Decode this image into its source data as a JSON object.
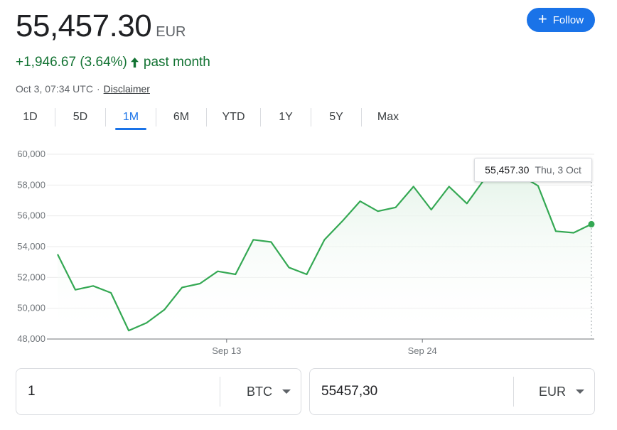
{
  "header": {
    "price": "55,457.30",
    "currency": "EUR",
    "change": "+1,946.67 (3.64%)",
    "change_period": "past month",
    "timestamp": "Oct 3, 07:34 UTC",
    "separator": "·",
    "disclaimer": "Disclaimer",
    "follow_label": "Follow",
    "follow_icon": "plus-icon",
    "up_icon": "arrow-up-icon"
  },
  "tabs": [
    {
      "label": "1D"
    },
    {
      "label": "5D"
    },
    {
      "label": "1M",
      "active": true
    },
    {
      "label": "6M"
    },
    {
      "label": "YTD"
    },
    {
      "label": "1Y"
    },
    {
      "label": "5Y"
    },
    {
      "label": "Max"
    }
  ],
  "tooltip": {
    "value": "55,457.30",
    "date": "Thu, 3 Oct"
  },
  "converter": {
    "left_value": "1",
    "left_currency": "BTC",
    "right_value": "55457,30",
    "right_currency": "EUR"
  },
  "colors": {
    "accent": "#1a73e8",
    "positive": "#137333",
    "line": "#34a853",
    "fill": "#e6f4ea"
  },
  "chart_data": {
    "type": "area",
    "title": "",
    "xlabel": "",
    "ylabel": "",
    "ylim": [
      48000,
      60000
    ],
    "yticks": [
      60000,
      58000,
      56000,
      54000,
      52000,
      50000,
      48000
    ],
    "ytick_labels": [
      "60,000",
      "58,000",
      "56,000",
      "54,000",
      "52,000",
      "50,000",
      "48,000"
    ],
    "xtick_labels": [
      {
        "label": "Sep 13",
        "index": 9.5
      },
      {
        "label": "Sep 24",
        "index": 20.5
      }
    ],
    "grid": true,
    "legend": "none",
    "values": [
      53500,
      51200,
      51450,
      51000,
      48550,
      49050,
      49900,
      51350,
      51600,
      52400,
      52200,
      54450,
      54300,
      52650,
      52200,
      54450,
      55650,
      56950,
      56300,
      56550,
      57900,
      56400,
      57900,
      56800,
      58400,
      58700,
      58650,
      57950,
      55000,
      54900,
      55457.3
    ]
  }
}
